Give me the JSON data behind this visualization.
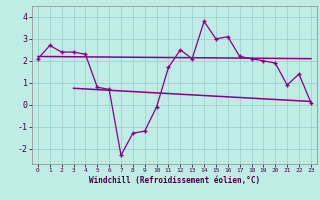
{
  "x": [
    0,
    1,
    2,
    3,
    4,
    5,
    6,
    7,
    8,
    9,
    10,
    11,
    12,
    13,
    14,
    15,
    16,
    17,
    18,
    19,
    20,
    21,
    22,
    23
  ],
  "y": [
    2.1,
    2.7,
    2.4,
    2.4,
    2.3,
    0.8,
    0.7,
    -2.3,
    -1.3,
    -1.2,
    -0.1,
    1.7,
    2.5,
    2.1,
    3.8,
    3.0,
    3.1,
    2.2,
    2.1,
    2.0,
    1.9,
    0.9,
    1.4,
    0.1
  ],
  "trend1_x": [
    0,
    23
  ],
  "trend1_y": [
    2.2,
    2.1
  ],
  "trend2_x": [
    3,
    23
  ],
  "trend2_y": [
    0.75,
    0.15
  ],
  "background_color": "#c0ece6",
  "grid_color": "#99cccc",
  "line_color": "#880088",
  "marker_color": "#880088",
  "xlabel": "Windchill (Refroidissement éolien,°C)",
  "xlim": [
    -0.5,
    23.5
  ],
  "ylim": [
    -2.7,
    4.5
  ],
  "yticks": [
    -2,
    -1,
    0,
    1,
    2,
    3,
    4
  ],
  "xticks": [
    0,
    1,
    2,
    3,
    4,
    5,
    6,
    7,
    8,
    9,
    10,
    11,
    12,
    13,
    14,
    15,
    16,
    17,
    18,
    19,
    20,
    21,
    22,
    23
  ]
}
